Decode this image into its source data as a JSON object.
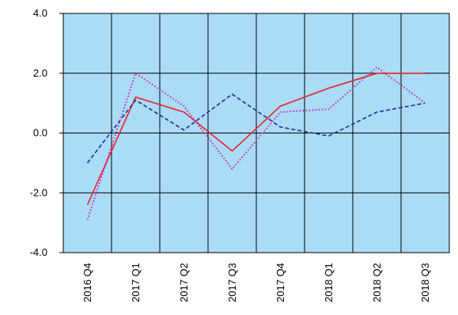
{
  "chart_data": {
    "type": "line",
    "categories": [
      "2016 Q4",
      "2017 Q1",
      "2017 Q2",
      "2017 Q3",
      "2017 Q4",
      "2018 Q1",
      "2018 Q2",
      "2018 Q3"
    ],
    "y_tick_labels": [
      "4.0",
      "2.0",
      "0.0",
      "-2.0",
      "-4.0"
    ],
    "y_ticks": [
      4,
      2,
      0,
      -2,
      -4
    ],
    "ylim": [
      -4,
      4
    ],
    "grid": true,
    "colors": {
      "plot_background": "#aadcf8",
      "grid": "#000000",
      "series_red": "#e8202a",
      "series_blue": "#1f2c8f",
      "series_magenta": "#d020b0"
    },
    "series": [
      {
        "values": [
          -2.4,
          1.2,
          0.7,
          -0.6,
          0.9,
          1.5,
          2.0,
          2.0
        ],
        "color": "#e8202a",
        "style": "solid"
      },
      {
        "values": [
          -1.0,
          1.1,
          0.1,
          1.3,
          0.2,
          -0.1,
          0.7,
          1.0
        ],
        "color": "#1f2c8f",
        "style": "dashed"
      },
      {
        "values": [
          -2.9,
          2.0,
          0.9,
          -1.2,
          0.7,
          0.8,
          2.2,
          1.0
        ],
        "color": "#d020b0",
        "style": "dotted"
      }
    ]
  }
}
